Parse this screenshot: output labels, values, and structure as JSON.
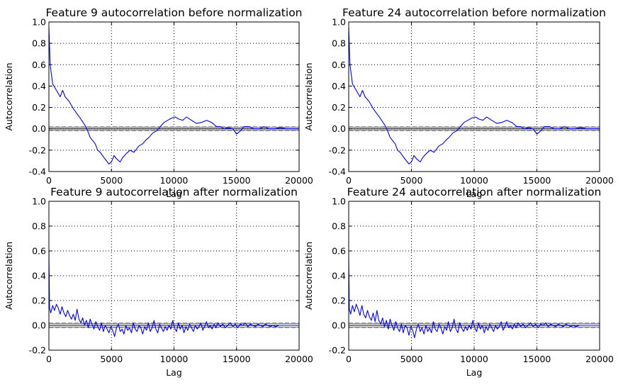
{
  "chart_data": [
    {
      "type": "line",
      "title": "Feature 9 autocorrelation before normalization",
      "xlabel": "Lag",
      "ylabel": "Autocorrelation",
      "xlim": [
        0,
        20000
      ],
      "ylim": [
        -0.4,
        1.0
      ],
      "xticks": [
        "0",
        "5000",
        "10000",
        "15000",
        "20000"
      ],
      "yticks": [
        "-0.4",
        "-0.2",
        "0.0",
        "0.2",
        "0.4",
        "0.6",
        "0.8",
        "1.0"
      ],
      "grid": true,
      "confidence_band_99": 0.018,
      "confidence_band_95": 0.014,
      "series": [
        {
          "name": "autocorrelation",
          "color": "#0000ff",
          "x": [
            0,
            100,
            300,
            600,
            900,
            1100,
            1300,
            1600,
            2000,
            2500,
            2900,
            3100,
            3300,
            3700,
            3900,
            4100,
            4400,
            4600,
            4800,
            5000,
            5200,
            5400,
            5700,
            5900,
            6200,
            6500,
            6800,
            7200,
            7500,
            7800,
            8000,
            8300,
            8600,
            8900,
            9200,
            9500,
            9800,
            10100,
            10400,
            10700,
            11000,
            11400,
            11800,
            12200,
            12600,
            13000,
            13400,
            13700,
            14000,
            14300,
            14700,
            15000,
            15300,
            15600,
            16000,
            16400,
            16800,
            17200,
            17600,
            18000,
            18500,
            19000,
            19500,
            20000
          ],
          "y": [
            0.95,
            0.6,
            0.42,
            0.36,
            0.3,
            0.36,
            0.3,
            0.26,
            0.18,
            0.1,
            0.03,
            -0.02,
            -0.08,
            -0.14,
            -0.2,
            -0.22,
            -0.27,
            -0.3,
            -0.33,
            -0.31,
            -0.25,
            -0.28,
            -0.31,
            -0.27,
            -0.23,
            -0.2,
            -0.22,
            -0.16,
            -0.14,
            -0.1,
            -0.08,
            -0.04,
            -0.02,
            0.02,
            0.06,
            0.08,
            0.1,
            0.11,
            0.09,
            0.08,
            0.11,
            0.08,
            0.05,
            0.06,
            0.08,
            0.06,
            0.02,
            0.02,
            0.0,
            0.01,
            0.0,
            -0.05,
            -0.02,
            0.02,
            0.02,
            0.0,
            0.0,
            0.02,
            0.0,
            0.0,
            0.01,
            0.0,
            0.0,
            0.0
          ]
        }
      ]
    },
    {
      "type": "line",
      "title": "Feature 24 autocorrelation before normalization",
      "xlabel": "Lag",
      "ylabel": "Autocorrelation",
      "xlim": [
        0,
        20000
      ],
      "ylim": [
        -0.4,
        1.0
      ],
      "xticks": [
        "0",
        "5000",
        "10000",
        "15000",
        "20000"
      ],
      "yticks": [
        "-0.4",
        "-0.2",
        "0.0",
        "0.2",
        "0.4",
        "0.6",
        "0.8",
        "1.0"
      ],
      "grid": true,
      "confidence_band_99": 0.018,
      "confidence_band_95": 0.014,
      "series": [
        {
          "name": "autocorrelation",
          "color": "#0000ff",
          "x": [
            0,
            100,
            300,
            600,
            900,
            1100,
            1300,
            1600,
            2000,
            2500,
            2900,
            3100,
            3300,
            3700,
            3900,
            4100,
            4400,
            4600,
            4800,
            5000,
            5200,
            5400,
            5700,
            5900,
            6200,
            6500,
            6800,
            7200,
            7500,
            7800,
            8000,
            8300,
            8600,
            8900,
            9200,
            9500,
            9800,
            10100,
            10400,
            10700,
            11000,
            11400,
            11800,
            12200,
            12600,
            13000,
            13400,
            13700,
            14000,
            14300,
            14700,
            15000,
            15300,
            15600,
            16000,
            16400,
            16800,
            17200,
            17600,
            18000,
            18500,
            19000,
            19500,
            20000
          ],
          "y": [
            0.95,
            0.6,
            0.42,
            0.36,
            0.3,
            0.36,
            0.3,
            0.26,
            0.18,
            0.1,
            0.03,
            -0.02,
            -0.08,
            -0.14,
            -0.2,
            -0.22,
            -0.27,
            -0.3,
            -0.33,
            -0.31,
            -0.25,
            -0.28,
            -0.31,
            -0.27,
            -0.23,
            -0.2,
            -0.22,
            -0.16,
            -0.14,
            -0.1,
            -0.08,
            -0.04,
            -0.02,
            0.02,
            0.06,
            0.08,
            0.1,
            0.11,
            0.09,
            0.08,
            0.11,
            0.08,
            0.05,
            0.06,
            0.08,
            0.06,
            0.02,
            0.02,
            0.0,
            0.01,
            0.0,
            -0.05,
            -0.02,
            0.02,
            0.02,
            0.0,
            0.0,
            0.02,
            0.0,
            0.0,
            0.01,
            0.0,
            0.0,
            0.0
          ]
        }
      ]
    },
    {
      "type": "line",
      "title": "Feature 9 autocorrelation after normalization",
      "xlabel": "Lag",
      "ylabel": "Autocorrelation",
      "xlim": [
        0,
        20000
      ],
      "ylim": [
        -0.2,
        1.0
      ],
      "xticks": [
        "0",
        "5000",
        "10000",
        "15000",
        "20000"
      ],
      "yticks": [
        "-0.2",
        "0.0",
        "0.2",
        "0.4",
        "0.6",
        "0.8",
        "1.0"
      ],
      "grid": true,
      "confidence_band_99": 0.018,
      "confidence_band_95": 0.014,
      "series": [
        {
          "name": "autocorrelation",
          "color": "#0000ff",
          "x": [
            0,
            50,
            150,
            300,
            450,
            600,
            750,
            900,
            1050,
            1200,
            1350,
            1500,
            1650,
            1800,
            1950,
            2100,
            2250,
            2400,
            2550,
            2700,
            2850,
            3000,
            3150,
            3300,
            3450,
            3600,
            3750,
            3900,
            4050,
            4200,
            4350,
            4500,
            4650,
            4800,
            4950,
            5100,
            5250,
            5400,
            5550,
            5700,
            5850,
            6000,
            6150,
            6300,
            6450,
            6600,
            6750,
            6900,
            7050,
            7200,
            7350,
            7500,
            7650,
            7800,
            7950,
            8100,
            8250,
            8400,
            8550,
            8700,
            8850,
            9000,
            9150,
            9300,
            9450,
            9600,
            9750,
            9900,
            10050,
            10200,
            10350,
            10500,
            10650,
            10800,
            10950,
            11100,
            11250,
            11400,
            11550,
            11700,
            11850,
            12000,
            12150,
            12300,
            12450,
            12600,
            12750,
            12900,
            13050,
            13200,
            13350,
            13500,
            13700,
            13900,
            14100,
            14300,
            14500,
            14700,
            14900,
            15100,
            15300,
            15500,
            15700,
            15900,
            16100,
            16300,
            16500,
            16700,
            16900,
            17100,
            17300,
            17500,
            17700,
            17900,
            18100,
            18400,
            18800,
            19200,
            19600,
            20000
          ],
          "y": [
            0.6,
            0.14,
            0.1,
            0.16,
            0.12,
            0.17,
            0.14,
            0.09,
            0.15,
            0.1,
            0.07,
            0.12,
            0.08,
            0.05,
            0.09,
            0.04,
            0.13,
            0.05,
            0.02,
            0.06,
            0.0,
            0.04,
            -0.02,
            0.05,
            0.01,
            -0.03,
            0.03,
            -0.01,
            -0.04,
            0.02,
            -0.05,
            0.0,
            -0.03,
            -0.06,
            -0.01,
            -0.04,
            -0.09,
            -0.02,
            0.01,
            -0.05,
            -0.03,
            -0.07,
            0.0,
            -0.04,
            -0.02,
            -0.06,
            0.02,
            -0.03,
            -0.05,
            0.0,
            -0.02,
            -0.07,
            -0.01,
            -0.04,
            0.02,
            -0.05,
            -0.02,
            0.04,
            -0.03,
            -0.06,
            0.01,
            -0.02,
            -0.05,
            -0.01,
            -0.04,
            0.0,
            -0.03,
            0.04,
            -0.02,
            -0.05,
            0.02,
            -0.03,
            0.0,
            -0.06,
            -0.01,
            -0.04,
            0.01,
            -0.02,
            -0.05,
            0.0,
            -0.03,
            -0.01,
            0.02,
            -0.04,
            -0.01,
            0.03,
            -0.02,
            0.0,
            -0.03,
            0.01,
            -0.02,
            0.02,
            -0.01,
            0.01,
            -0.02,
            0.0,
            0.02,
            -0.01,
            0.01,
            -0.02,
            0.01,
            0.0,
            0.02,
            -0.01,
            0.01,
            0.0,
            -0.01,
            0.01,
            0.0,
            -0.01,
            0.01,
            0.0,
            -0.01,
            0.0,
            -0.01,
            0.0,
            0.0,
            0.0,
            0.0,
            0.0
          ]
        }
      ]
    },
    {
      "type": "line",
      "title": "Feature 24 autocorrelation after normalization",
      "xlabel": "Lag",
      "ylabel": "Autocorrelation",
      "xlim": [
        0,
        20000
      ],
      "ylim": [
        -0.2,
        1.0
      ],
      "xticks": [
        "0",
        "5000",
        "10000",
        "15000",
        "20000"
      ],
      "yticks": [
        "-0.2",
        "0.0",
        "0.2",
        "0.4",
        "0.6",
        "0.8",
        "1.0"
      ],
      "grid": true,
      "confidence_band_99": 0.018,
      "confidence_band_95": 0.014,
      "series": [
        {
          "name": "autocorrelation",
          "color": "#0000ff",
          "x": [
            0,
            50,
            150,
            300,
            450,
            600,
            750,
            900,
            1050,
            1200,
            1350,
            1500,
            1650,
            1800,
            1950,
            2100,
            2250,
            2400,
            2550,
            2700,
            2850,
            3000,
            3150,
            3300,
            3450,
            3600,
            3750,
            3900,
            4050,
            4200,
            4350,
            4500,
            4650,
            4800,
            4950,
            5100,
            5250,
            5400,
            5550,
            5700,
            5850,
            6000,
            6150,
            6300,
            6450,
            6600,
            6750,
            6900,
            7050,
            7200,
            7350,
            7500,
            7650,
            7800,
            7950,
            8100,
            8250,
            8400,
            8550,
            8700,
            8850,
            9000,
            9150,
            9300,
            9450,
            9600,
            9750,
            9900,
            10050,
            10200,
            10350,
            10500,
            10650,
            10800,
            10950,
            11100,
            11250,
            11400,
            11550,
            11700,
            11850,
            12000,
            12150,
            12300,
            12450,
            12600,
            12750,
            12900,
            13050,
            13200,
            13350,
            13500,
            13700,
            13900,
            14100,
            14300,
            14500,
            14700,
            14900,
            15100,
            15300,
            15500,
            15700,
            15900,
            16100,
            16300,
            16500,
            16700,
            16900,
            17100,
            17300,
            17500,
            17700,
            17900,
            18100,
            18400,
            18800,
            19200,
            19600,
            20000
          ],
          "y": [
            0.55,
            0.13,
            0.09,
            0.16,
            0.11,
            0.17,
            0.13,
            0.08,
            0.16,
            0.09,
            0.06,
            0.12,
            0.07,
            0.04,
            0.1,
            0.03,
            0.12,
            0.04,
            0.01,
            0.06,
            -0.01,
            0.04,
            -0.03,
            0.05,
            0.0,
            -0.04,
            0.03,
            -0.02,
            -0.05,
            0.01,
            -0.06,
            0.0,
            -0.02,
            -0.08,
            -0.01,
            -0.04,
            -0.1,
            -0.03,
            0.01,
            -0.05,
            -0.02,
            -0.07,
            0.0,
            -0.05,
            -0.02,
            -0.06,
            0.03,
            -0.03,
            -0.05,
            0.01,
            -0.02,
            -0.07,
            -0.01,
            -0.04,
            0.03,
            -0.05,
            -0.02,
            0.05,
            -0.03,
            -0.06,
            0.02,
            -0.02,
            -0.05,
            -0.01,
            -0.04,
            0.0,
            -0.03,
            0.04,
            -0.02,
            -0.05,
            0.02,
            -0.03,
            0.0,
            -0.06,
            -0.01,
            -0.04,
            0.01,
            -0.02,
            -0.05,
            0.0,
            -0.03,
            -0.01,
            0.03,
            -0.04,
            -0.01,
            0.03,
            -0.02,
            0.0,
            -0.03,
            0.01,
            -0.02,
            0.02,
            -0.01,
            0.01,
            -0.02,
            0.0,
            0.02,
            -0.01,
            0.01,
            -0.02,
            0.01,
            0.0,
            0.02,
            -0.01,
            0.01,
            0.0,
            -0.01,
            0.01,
            0.0,
            -0.01,
            0.01,
            0.0,
            -0.01,
            0.0,
            -0.01,
            0.0,
            0.0,
            0.0,
            0.0,
            0.0
          ]
        }
      ]
    }
  ]
}
